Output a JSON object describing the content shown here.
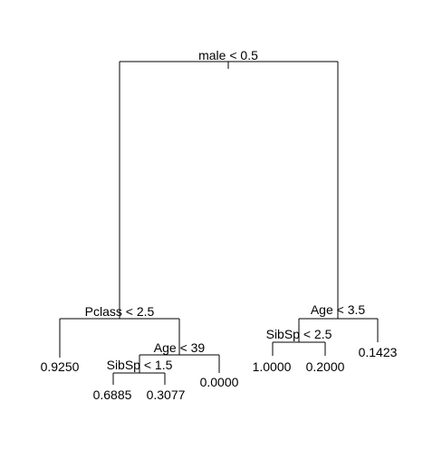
{
  "tree": {
    "root": {
      "split": "male < 0.5",
      "left": {
        "split": "Pclass < 2.5",
        "left": {
          "leaf": "0.9250"
        },
        "right": {
          "split": "Age < 39",
          "left": {
            "split": "SibSp < 1.5",
            "left": {
              "leaf": "0.6885"
            },
            "right": {
              "leaf": "0.3077"
            }
          },
          "right": {
            "leaf": "0.0000"
          }
        }
      },
      "right": {
        "split": "Age < 3.5",
        "left": {
          "split": "SibSp < 2.5",
          "left": {
            "leaf": "1.0000"
          },
          "right": {
            "leaf": "0.2000"
          }
        },
        "right": {
          "leaf": "0.1423"
        }
      }
    }
  }
}
